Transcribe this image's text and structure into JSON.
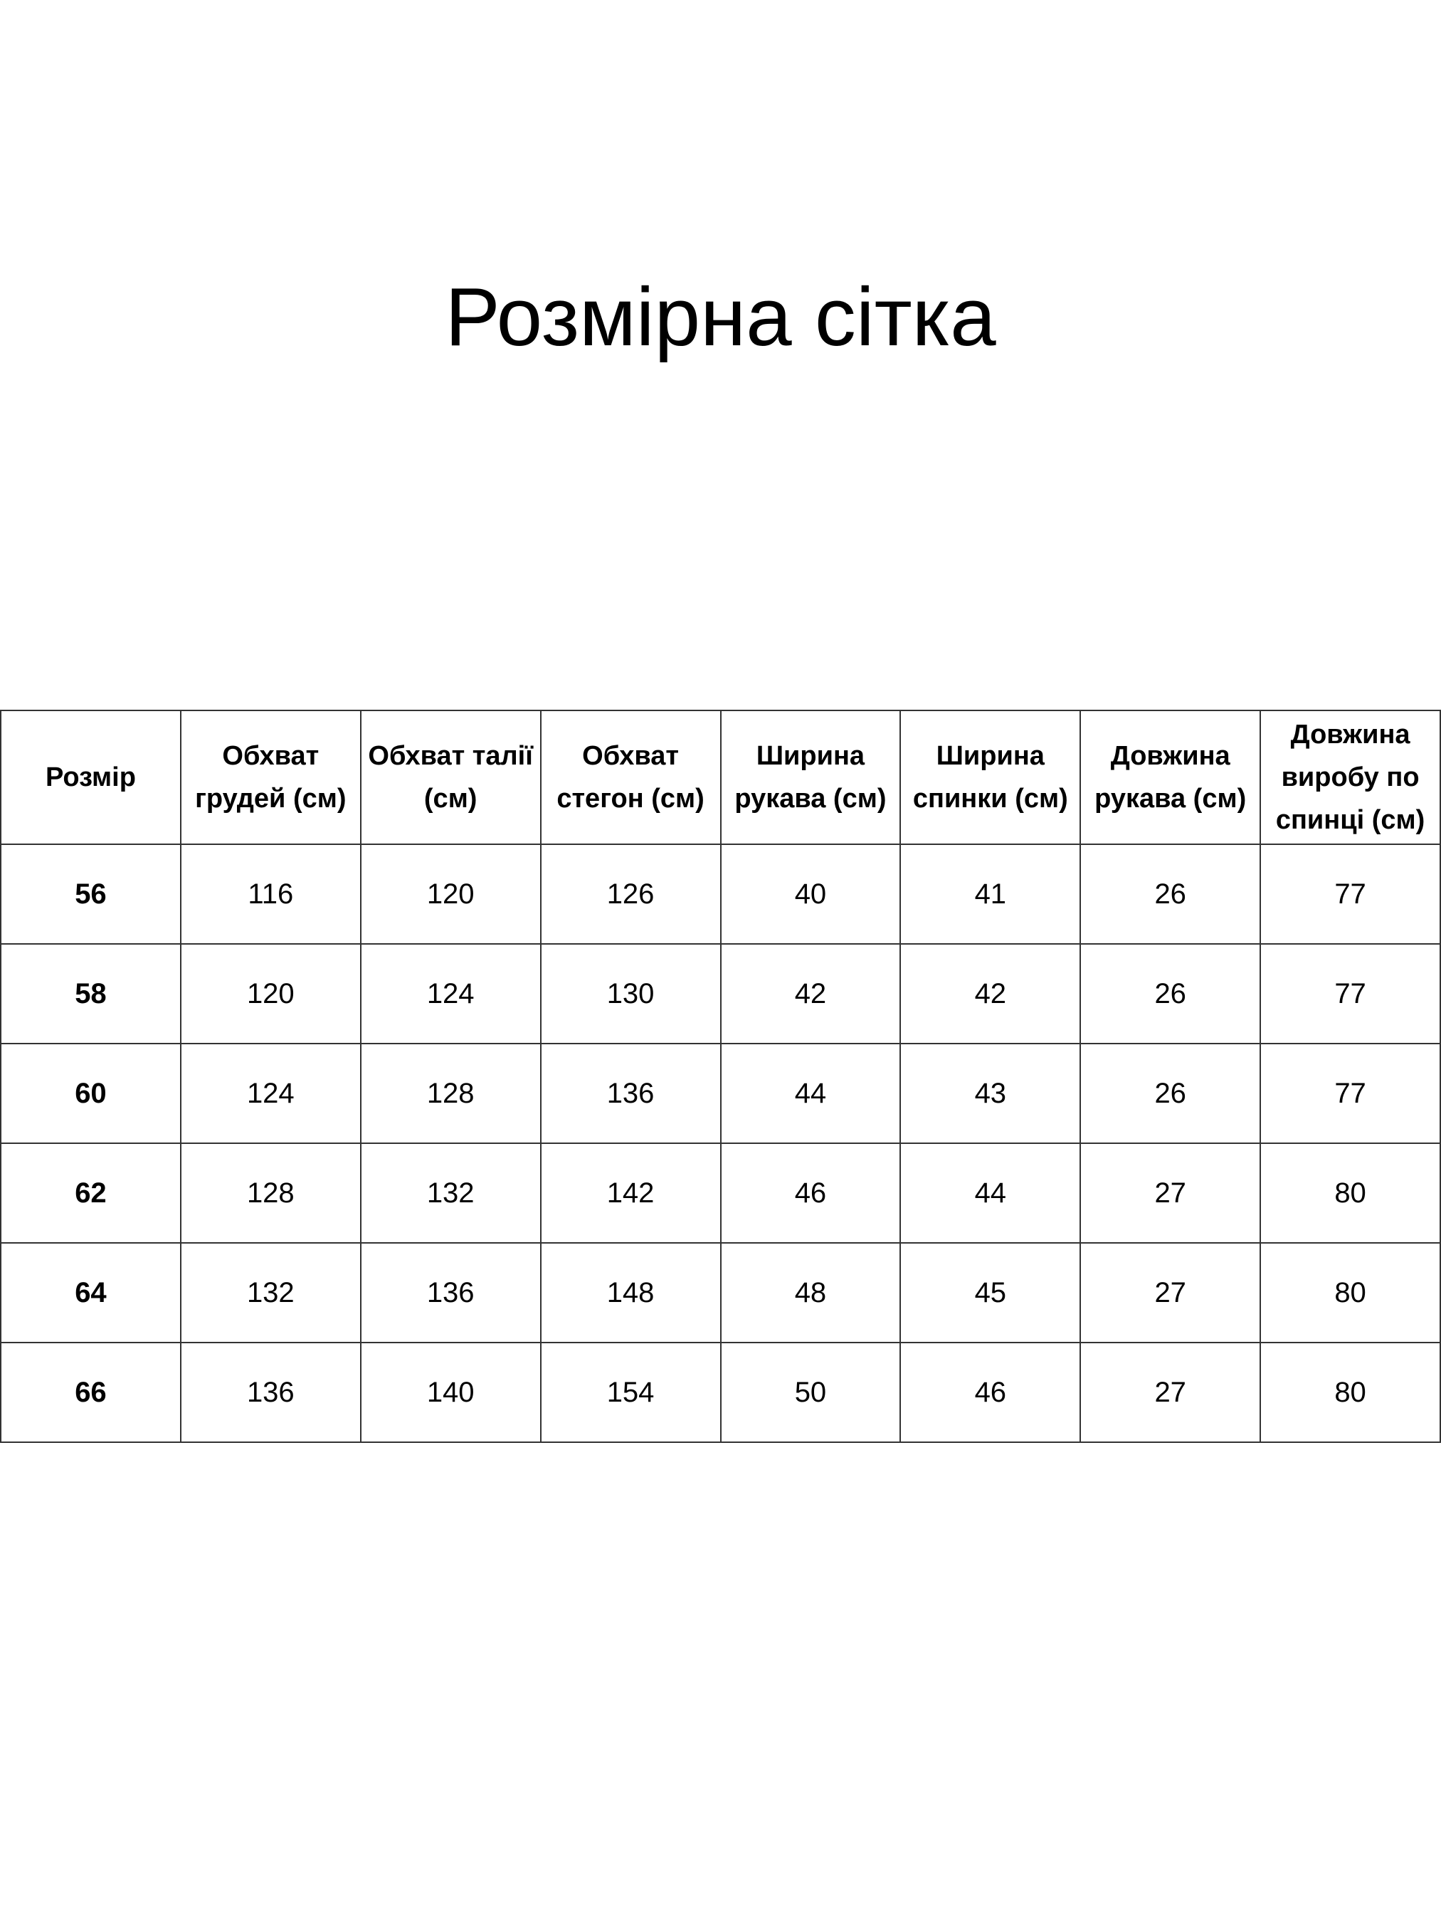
{
  "title": "Розмірна сітка",
  "table": {
    "headers": [
      "Розмір",
      "Обхват грудей (см)",
      "Обхват талії (см)",
      "Обхват стегон (см)",
      "Ширина рукава (см)",
      "Ширина спинки (см)",
      "Довжина рукава (см)",
      "Довжина виробу по спинці (см)"
    ],
    "rows": [
      [
        "56",
        "116",
        "120",
        "126",
        "40",
        "41",
        "26",
        "77"
      ],
      [
        "58",
        "120",
        "124",
        "130",
        "42",
        "42",
        "26",
        "77"
      ],
      [
        "60",
        "124",
        "128",
        "136",
        "44",
        "43",
        "26",
        "77"
      ],
      [
        "62",
        "128",
        "132",
        "142",
        "46",
        "44",
        "27",
        "80"
      ],
      [
        "64",
        "132",
        "136",
        "148",
        "48",
        "45",
        "27",
        "80"
      ],
      [
        "66",
        "136",
        "140",
        "154",
        "50",
        "46",
        "27",
        "80"
      ]
    ]
  }
}
